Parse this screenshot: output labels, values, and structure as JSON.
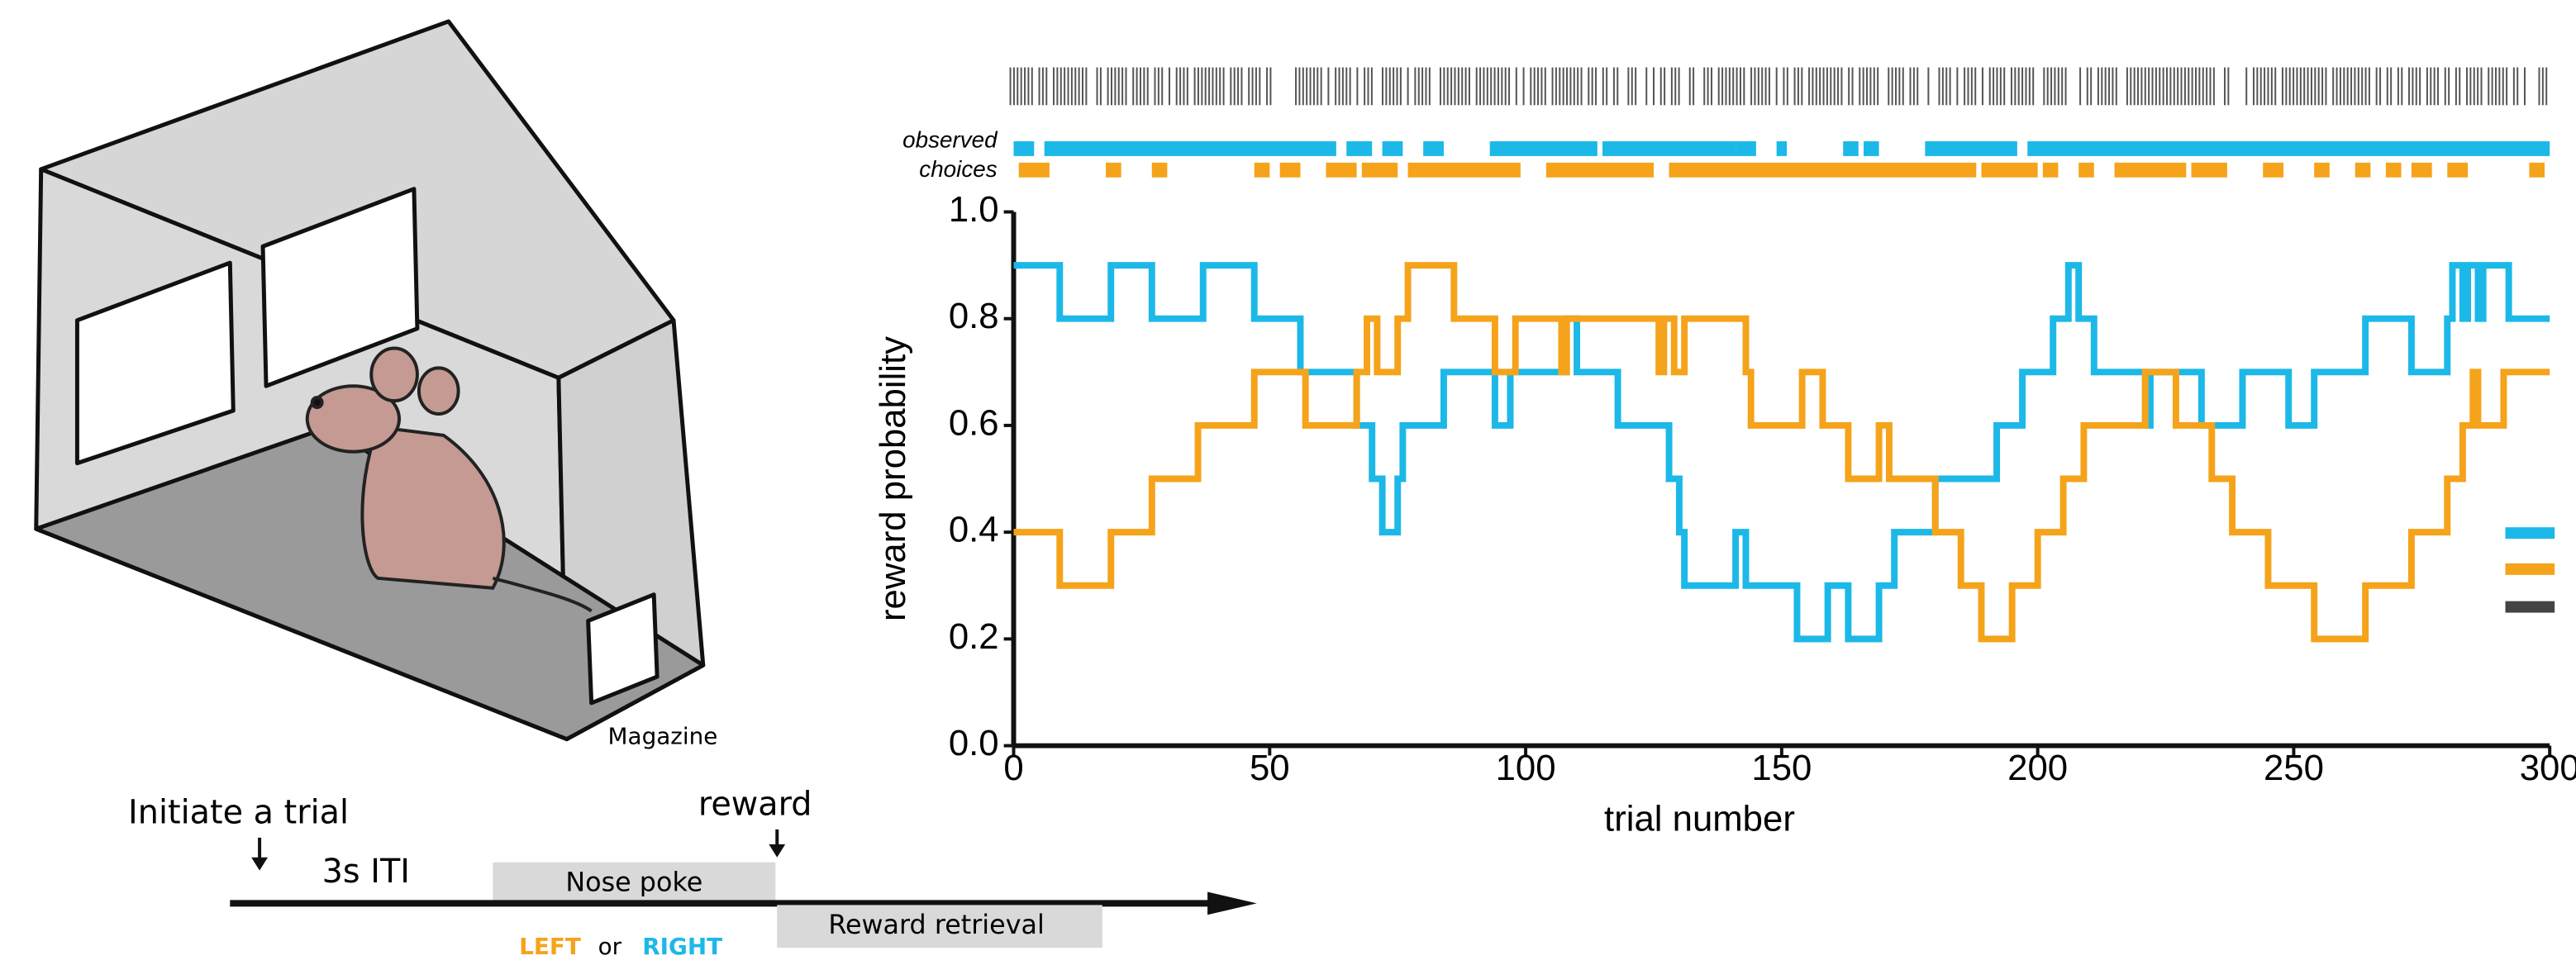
{
  "chart_data": {
    "type": "step-line",
    "xlabel": "trial number",
    "ylabel": "reward probability",
    "xlim": [
      0,
      300
    ],
    "ylim": [
      0,
      1
    ],
    "xticks": [
      0,
      50,
      100,
      150,
      200,
      250,
      300
    ],
    "yticks": [
      {
        "value": 0,
        "label": "0.0"
      },
      0.2,
      0.4,
      0.6,
      0.8,
      {
        "value": 1,
        "label": "1.0"
      }
    ],
    "series": [
      {
        "color": "#1cb8e8",
        "x": [
          0,
          9,
          19,
          27,
          37,
          47,
          56,
          67,
          70,
          72,
          75,
          76,
          84,
          94,
          97,
          108,
          110,
          118,
          128,
          130,
          131,
          141,
          143,
          153,
          159,
          163,
          169,
          172,
          180,
          192,
          197,
          203,
          206,
          208,
          211,
          221,
          222,
          232,
          240,
          249,
          254,
          264,
          273,
          280,
          281,
          283,
          284,
          286,
          287,
          292,
          300
        ],
        "values": [
          0.9,
          0.8,
          0.9,
          0.8,
          0.9,
          0.8,
          0.7,
          0.6,
          0.5,
          0.4,
          0.5,
          0.6,
          0.7,
          0.6,
          0.7,
          0.8,
          0.7,
          0.6,
          0.5,
          0.4,
          0.3,
          0.4,
          0.3,
          0.2,
          0.3,
          0.2,
          0.3,
          0.4,
          0.5,
          0.6,
          0.7,
          0.8,
          0.9,
          0.8,
          0.7,
          0.6,
          0.7,
          0.6,
          0.7,
          0.6,
          0.7,
          0.8,
          0.7,
          0.8,
          0.9,
          0.8,
          0.9,
          0.8,
          0.9,
          0.8,
          0.8
        ]
      },
      {
        "color": "#f5a31a",
        "x": [
          0,
          9,
          19,
          27,
          36,
          47,
          57,
          67,
          69,
          71,
          75,
          77,
          86,
          94,
          98,
          107,
          108,
          126,
          127,
          129,
          131,
          143,
          144,
          154,
          158,
          163,
          169,
          171,
          180,
          185,
          189,
          195,
          200,
          205,
          209,
          221,
          227,
          234,
          238,
          245,
          254,
          264,
          273,
          280,
          283,
          285,
          286,
          291,
          300
        ],
        "values": [
          0.4,
          0.3,
          0.4,
          0.5,
          0.6,
          0.7,
          0.6,
          0.7,
          0.8,
          0.7,
          0.8,
          0.9,
          0.8,
          0.7,
          0.8,
          0.7,
          0.8,
          0.7,
          0.8,
          0.7,
          0.8,
          0.7,
          0.6,
          0.7,
          0.6,
          0.5,
          0.6,
          0.5,
          0.4,
          0.3,
          0.2,
          0.3,
          0.4,
          0.5,
          0.6,
          0.7,
          0.6,
          0.5,
          0.4,
          0.3,
          0.2,
          0.3,
          0.4,
          0.5,
          0.6,
          0.7,
          0.6,
          0.7,
          0.7
        ]
      }
    ],
    "choices_label": [
      "observed",
      "choices"
    ],
    "choices": [
      {
        "color": "#1cb8e8",
        "segments": [
          [
            0,
            4
          ],
          [
            6,
            63
          ],
          [
            65,
            70
          ],
          [
            72,
            76
          ],
          [
            80,
            84
          ],
          [
            93,
            114
          ],
          [
            115,
            141
          ],
          [
            141,
            145
          ],
          [
            149,
            151
          ],
          [
            162,
            165
          ],
          [
            166,
            169
          ],
          [
            178,
            196
          ],
          [
            198,
            300
          ]
        ]
      },
      {
        "color": "#f5a31a",
        "segments": [
          [
            1,
            7
          ],
          [
            18,
            21
          ],
          [
            27,
            30
          ],
          [
            47,
            50
          ],
          [
            52,
            56
          ],
          [
            61,
            67
          ],
          [
            68,
            75
          ],
          [
            77,
            99
          ],
          [
            104,
            125
          ],
          [
            128,
            188
          ],
          [
            189,
            200
          ],
          [
            201,
            204
          ],
          [
            208,
            211
          ],
          [
            215,
            229
          ],
          [
            230,
            237
          ],
          [
            244,
            248
          ],
          [
            254,
            257
          ],
          [
            262,
            265
          ],
          [
            268,
            271
          ],
          [
            273,
            277
          ],
          [
            280,
            284
          ],
          [
            296,
            299
          ]
        ]
      }
    ]
  },
  "diagram": {
    "magazine": "Magazine",
    "initiate": "Initiate a trial",
    "reward": "reward",
    "iti": "3s ITI",
    "nose_poke": "Nose poke",
    "retrieval": "Reward retrieval",
    "left": "LEFT",
    "or": "or",
    "right": "RIGHT"
  }
}
